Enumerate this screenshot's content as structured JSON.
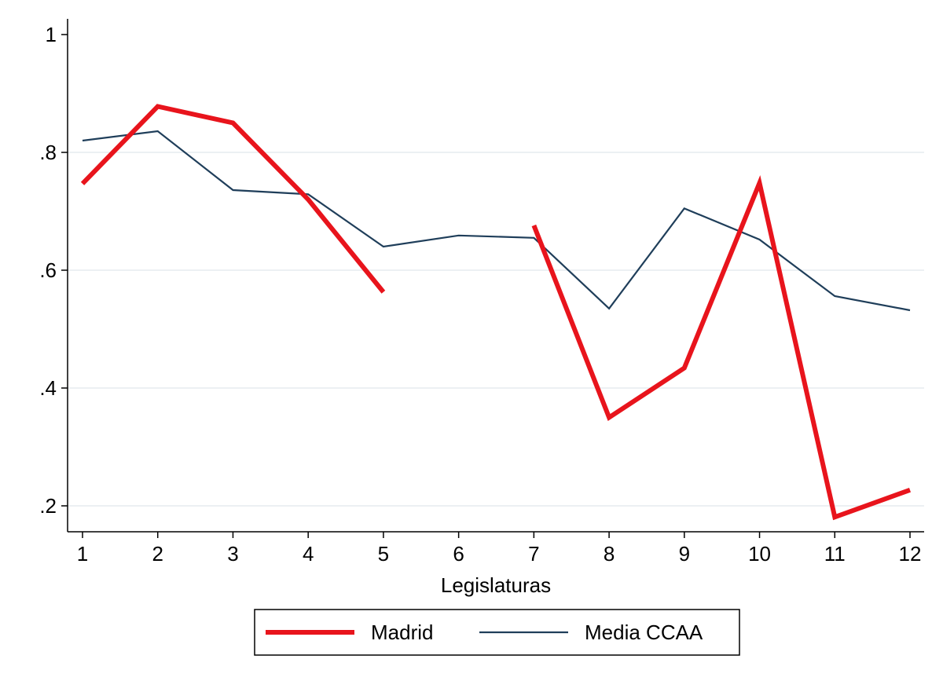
{
  "chart_data": {
    "type": "line",
    "title": "",
    "xlabel": "Legislaturas",
    "ylabel": "",
    "x": [
      1,
      2,
      3,
      4,
      5,
      6,
      7,
      8,
      9,
      10,
      11,
      12
    ],
    "x_tick_labels": [
      "1",
      "2",
      "3",
      "4",
      "5",
      "6",
      "7",
      "8",
      "9",
      "10",
      "11",
      "12"
    ],
    "y_ticks": [
      0.2,
      0.4,
      0.6,
      0.8,
      1.0
    ],
    "y_tick_labels": [
      ".2",
      ".4",
      ".6",
      ".8",
      "1"
    ],
    "xlim": [
      1,
      12
    ],
    "ylim": [
      0.16,
      1.03
    ],
    "grid": true,
    "legend_position": "bottom",
    "series": [
      {
        "name": "Madrid",
        "color": "#e8141c",
        "values": [
          0.747,
          0.878,
          0.85,
          0.72,
          0.563,
          null,
          0.676,
          0.35,
          0.434,
          0.748,
          0.181,
          0.227
        ]
      },
      {
        "name": "Media CCAA",
        "color": "#1f3e5a",
        "values": [
          0.82,
          0.836,
          0.736,
          0.729,
          0.64,
          0.659,
          0.655,
          0.535,
          0.705,
          0.652,
          0.556,
          0.532
        ]
      }
    ]
  }
}
